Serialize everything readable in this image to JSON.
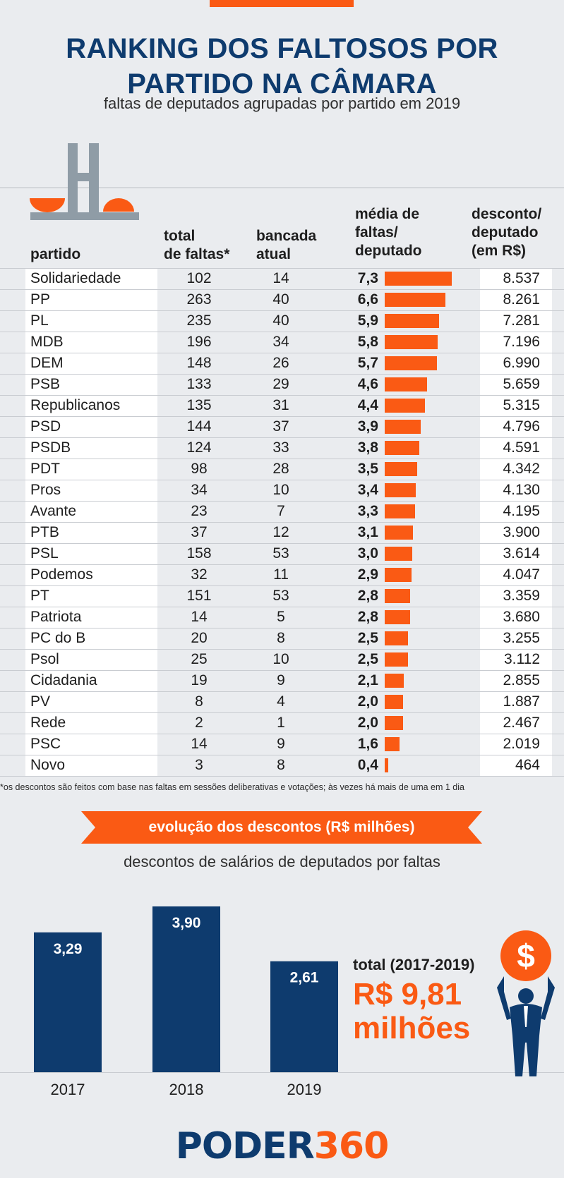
{
  "header": {
    "title_line1": "RANKING DOS FALTOSOS POR",
    "title_line2": "PARTIDO NA CÂMARA",
    "subtitle": "faltas de deputados agrupadas por partido em 2019"
  },
  "columns": {
    "party": "partido",
    "total_1": "total",
    "total_2": "de faltas*",
    "banc_1": "bancada",
    "banc_2": "atual",
    "avg_1": "média de",
    "avg_2": "faltas/",
    "avg_3": "deputado",
    "desc_1": "desconto/",
    "desc_2": "deputado",
    "desc_3": "(em R$)"
  },
  "table": [
    {
      "party": "Solidariedade",
      "total": "102",
      "bancada": "14",
      "avg": "7,3",
      "avg_num": 7.3,
      "desc": "8.537"
    },
    {
      "party": "PP",
      "total": "263",
      "bancada": "40",
      "avg": "6,6",
      "avg_num": 6.6,
      "desc": "8.261"
    },
    {
      "party": "PL",
      "total": "235",
      "bancada": "40",
      "avg": "5,9",
      "avg_num": 5.9,
      "desc": "7.281"
    },
    {
      "party": "MDB",
      "total": "196",
      "bancada": "34",
      "avg": "5,8",
      "avg_num": 5.8,
      "desc": "7.196"
    },
    {
      "party": "DEM",
      "total": "148",
      "bancada": "26",
      "avg": "5,7",
      "avg_num": 5.7,
      "desc": "6.990"
    },
    {
      "party": "PSB",
      "total": "133",
      "bancada": "29",
      "avg": "4,6",
      "avg_num": 4.6,
      "desc": "5.659"
    },
    {
      "party": "Republicanos",
      "total": "135",
      "bancada": "31",
      "avg": "4,4",
      "avg_num": 4.4,
      "desc": "5.315"
    },
    {
      "party": "PSD",
      "total": "144",
      "bancada": "37",
      "avg": "3,9",
      "avg_num": 3.9,
      "desc": "4.796"
    },
    {
      "party": "PSDB",
      "total": "124",
      "bancada": "33",
      "avg": "3,8",
      "avg_num": 3.8,
      "desc": "4.591"
    },
    {
      "party": "PDT",
      "total": "98",
      "bancada": "28",
      "avg": "3,5",
      "avg_num": 3.5,
      "desc": "4.342"
    },
    {
      "party": "Pros",
      "total": "34",
      "bancada": "10",
      "avg": "3,4",
      "avg_num": 3.4,
      "desc": "4.130"
    },
    {
      "party": "Avante",
      "total": "23",
      "bancada": "7",
      "avg": "3,3",
      "avg_num": 3.3,
      "desc": "4.195"
    },
    {
      "party": "PTB",
      "total": "37",
      "bancada": "12",
      "avg": "3,1",
      "avg_num": 3.1,
      "desc": "3.900"
    },
    {
      "party": "PSL",
      "total": "158",
      "bancada": "53",
      "avg": "3,0",
      "avg_num": 3.0,
      "desc": "3.614"
    },
    {
      "party": "Podemos",
      "total": "32",
      "bancada": "11",
      "avg": "2,9",
      "avg_num": 2.9,
      "desc": "4.047"
    },
    {
      "party": "PT",
      "total": "151",
      "bancada": "53",
      "avg": "2,8",
      "avg_num": 2.8,
      "desc": "3.359"
    },
    {
      "party": "Patriota",
      "total": "14",
      "bancada": "5",
      "avg": "2,8",
      "avg_num": 2.8,
      "desc": "3.680"
    },
    {
      "party": "PC do B",
      "total": "20",
      "bancada": "8",
      "avg": "2,5",
      "avg_num": 2.5,
      "desc": "3.255"
    },
    {
      "party": "Psol",
      "total": "25",
      "bancada": "10",
      "avg": "2,5",
      "avg_num": 2.5,
      "desc": "3.112"
    },
    {
      "party": "Cidadania",
      "total": "19",
      "bancada": "9",
      "avg": "2,1",
      "avg_num": 2.1,
      "desc": "2.855"
    },
    {
      "party": "PV",
      "total": "8",
      "bancada": "4",
      "avg": "2,0",
      "avg_num": 2.0,
      "desc": "1.887"
    },
    {
      "party": "Rede",
      "total": "2",
      "bancada": "1",
      "avg": "2,0",
      "avg_num": 2.0,
      "desc": "2.467"
    },
    {
      "party": "PSC",
      "total": "14",
      "bancada": "9",
      "avg": "1,6",
      "avg_num": 1.6,
      "desc": "2.019"
    },
    {
      "party": "Novo",
      "total": "3",
      "bancada": "8",
      "avg": "0,4",
      "avg_num": 0.4,
      "desc": "464"
    }
  ],
  "footnote": "*os descontos são feitos com base nas faltas em sessões deliberativas e votações; às vezes há mais de uma em 1 dia",
  "evolution": {
    "ribbon": "evolução dos descontos (R$ milhões)",
    "subtitle": "descontos de salários de deputados por faltas",
    "total_label": "total (2017-2019)",
    "total_line1": "R$ 9,81",
    "total_line2": "milhões"
  },
  "colors": {
    "navy": "#0e3b6e",
    "orange": "#fa5a14",
    "background": "#eaecef",
    "icon_gray": "#8f9ca6"
  },
  "icons": [
    "congress-icon",
    "dollar-icon",
    "person-icon"
  ],
  "chart_data": [
    {
      "type": "table",
      "columns": [
        "partido",
        "total de faltas*",
        "bancada atual",
        "média de faltas/ deputado",
        "desconto/ deputado (em R$)"
      ],
      "rows": [
        [
          "Solidariedade",
          102,
          14,
          7.3,
          8537
        ],
        [
          "PP",
          263,
          40,
          6.6,
          8261
        ],
        [
          "PL",
          235,
          40,
          5.9,
          7281
        ],
        [
          "MDB",
          196,
          34,
          5.8,
          7196
        ],
        [
          "DEM",
          148,
          26,
          5.7,
          6990
        ],
        [
          "PSB",
          133,
          29,
          4.6,
          5659
        ],
        [
          "Republicanos",
          135,
          31,
          4.4,
          5315
        ],
        [
          "PSD",
          144,
          37,
          3.9,
          4796
        ],
        [
          "PSDB",
          124,
          33,
          3.8,
          4591
        ],
        [
          "PDT",
          98,
          28,
          3.5,
          4342
        ],
        [
          "Pros",
          34,
          10,
          3.4,
          4130
        ],
        [
          "Avante",
          23,
          7,
          3.3,
          4195
        ],
        [
          "PTB",
          37,
          12,
          3.1,
          3900
        ],
        [
          "PSL",
          158,
          53,
          3.0,
          3614
        ],
        [
          "Podemos",
          32,
          11,
          2.9,
          4047
        ],
        [
          "PT",
          151,
          53,
          2.8,
          3359
        ],
        [
          "Patriota",
          14,
          5,
          2.8,
          3680
        ],
        [
          "PC do B",
          20,
          8,
          2.5,
          3255
        ],
        [
          "Psol",
          25,
          10,
          2.5,
          3112
        ],
        [
          "Cidadania",
          19,
          9,
          2.1,
          2855
        ],
        [
          "PV",
          8,
          4,
          2.0,
          1887
        ],
        [
          "Rede",
          2,
          1,
          2.0,
          2467
        ],
        [
          "PSC",
          14,
          9,
          1.6,
          2019
        ],
        [
          "Novo",
          3,
          8,
          0.4,
          464
        ]
      ]
    },
    {
      "type": "bar",
      "categories": [
        "2017",
        "2018",
        "2019"
      ],
      "values": [
        3.29,
        3.9,
        2.61
      ],
      "value_labels": [
        "3,29",
        "3,90",
        "2,61"
      ],
      "title": "evolução dos descontos (R$ milhões)",
      "subtitle": "descontos de salários de deputados por faltas",
      "ylim": [
        0,
        3.9
      ],
      "grid": false,
      "color": "#0e3b6e"
    }
  ]
}
